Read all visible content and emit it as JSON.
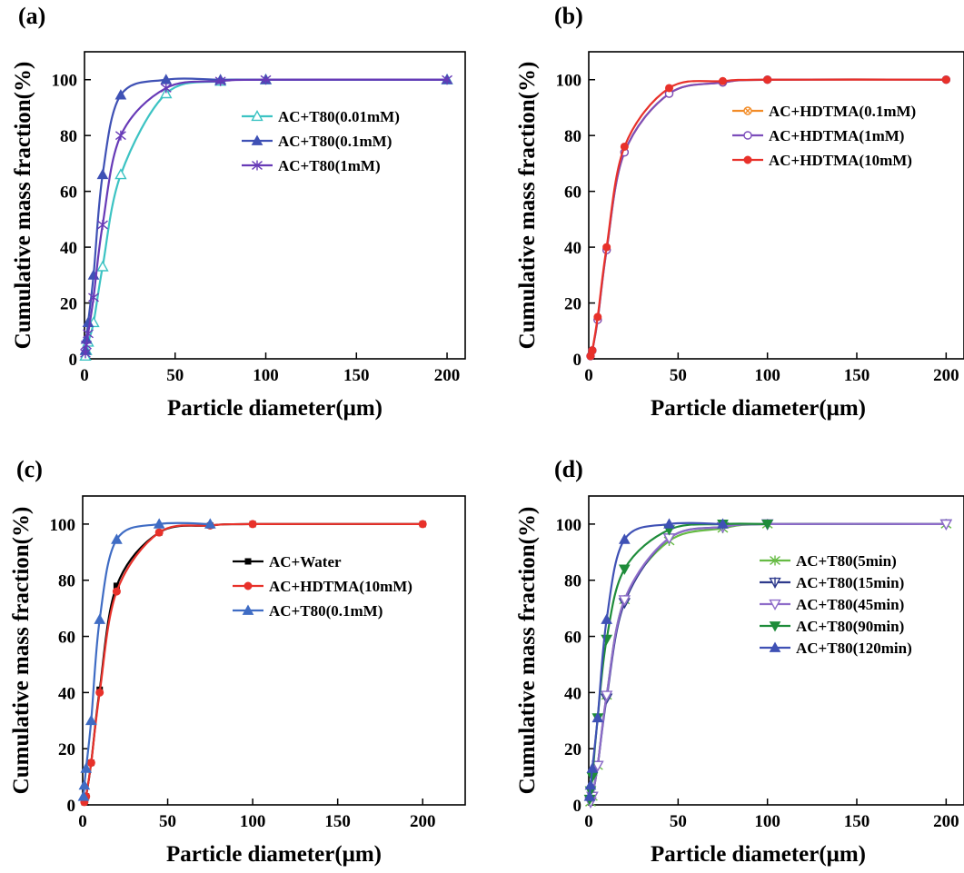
{
  "chart_data": [
    {
      "panel": "(a)",
      "type": "line",
      "xlabel": "Particle diameter(μm)",
      "ylabel": "Cumulative mass fraction(%)",
      "xlim": [
        0,
        210
      ],
      "ylim": [
        0,
        110
      ],
      "xticks": [
        0,
        50,
        100,
        150,
        200
      ],
      "yticks": [
        0,
        20,
        40,
        60,
        80,
        100
      ],
      "legend_position": "right-middle",
      "series": [
        {
          "name": "AC+T80(0.01mM)",
          "color": "#3cc3c3",
          "marker": "open-triangle",
          "x": [
            0.5,
            1,
            2,
            5,
            10,
            20,
            45,
            75,
            100,
            200
          ],
          "y": [
            1,
            3,
            6,
            13,
            33,
            66,
            95,
            99.5,
            100,
            100
          ]
        },
        {
          "name": "AC+T80(0.1mM)",
          "color": "#3f51b5",
          "marker": "filled-triangle",
          "x": [
            0.5,
            1,
            2,
            5,
            10,
            20,
            45,
            75,
            100,
            200
          ],
          "y": [
            3,
            7,
            13,
            30,
            66,
            94.5,
            100,
            100,
            100,
            100
          ]
        },
        {
          "name": "AC+T80(1mM)",
          "color": "#673ab7",
          "marker": "star",
          "x": [
            0.5,
            1,
            2,
            5,
            10,
            20,
            45,
            75,
            100,
            200
          ],
          "y": [
            2,
            5,
            9,
            22,
            48,
            80,
            97,
            99.5,
            100,
            100
          ]
        }
      ]
    },
    {
      "panel": "(b)",
      "type": "line",
      "xlabel": "Particle diameter(μm)",
      "ylabel": "Cumulative mass fraction(%)",
      "xlim": [
        0,
        210
      ],
      "ylim": [
        0,
        110
      ],
      "xticks": [
        0,
        50,
        100,
        150,
        200
      ],
      "yticks": [
        0,
        20,
        40,
        60,
        80,
        100
      ],
      "legend_position": "top-right",
      "series": [
        {
          "name": "AC+HDTMA(0.1mM)",
          "color": "#f28c28",
          "marker": "open-circle-x",
          "x": [
            1,
            2,
            5,
            10,
            20,
            45,
            75,
            100,
            200
          ],
          "y": [
            1,
            3,
            14,
            39,
            74,
            95,
            99,
            100,
            100
          ]
        },
        {
          "name": "AC+HDTMA(1mM)",
          "color": "#7c4dbb",
          "marker": "open-circle",
          "x": [
            1,
            2,
            5,
            10,
            20,
            45,
            75,
            100,
            200
          ],
          "y": [
            1,
            3,
            14,
            39,
            74,
            95,
            99,
            100,
            100
          ]
        },
        {
          "name": "AC+HDTMA(10mM)",
          "color": "#e8312a",
          "marker": "filled-circle",
          "x": [
            1,
            2,
            5,
            10,
            20,
            45,
            75,
            100,
            200
          ],
          "y": [
            1,
            3,
            15,
            40,
            76,
            97,
            99.5,
            100,
            100
          ]
        }
      ]
    },
    {
      "panel": "(c)",
      "type": "line",
      "xlabel": "Particle diameter(μm)",
      "ylabel": "Cumulative mass fraction(%)",
      "xlim": [
        0,
        225
      ],
      "ylim": [
        0,
        110
      ],
      "xticks": [
        0,
        50,
        100,
        150,
        200
      ],
      "yticks": [
        0,
        20,
        40,
        60,
        80,
        100
      ],
      "legend_position": "right-middle",
      "series": [
        {
          "name": "AC+Water",
          "color": "#000000",
          "marker": "filled-square",
          "x": [
            1,
            2,
            5,
            10,
            20,
            45,
            75,
            100,
            200
          ],
          "y": [
            1,
            3,
            15,
            41,
            78,
            97,
            99.5,
            100,
            100
          ]
        },
        {
          "name": "AC+HDTMA(10mM)",
          "color": "#e8312a",
          "marker": "filled-circle",
          "x": [
            1,
            2,
            5,
            10,
            20,
            45,
            75,
            100,
            200
          ],
          "y": [
            1,
            3,
            15,
            40,
            76,
            97,
            99.5,
            100,
            100
          ]
        },
        {
          "name": "AC+T80(0.1mM)",
          "color": "#3f6cc4",
          "marker": "filled-triangle",
          "x": [
            0.5,
            1,
            2,
            5,
            10,
            20,
            45,
            75
          ],
          "y": [
            3,
            7,
            13,
            30,
            66,
            94.5,
            100,
            100
          ]
        }
      ]
    },
    {
      "panel": "(d)",
      "type": "line",
      "xlabel": "Particle diameter(μm)",
      "ylabel": "Cumulative mass fraction(%)",
      "xlim": [
        0,
        210
      ],
      "ylim": [
        0,
        110
      ],
      "xticks": [
        0,
        50,
        100,
        150,
        200
      ],
      "yticks": [
        0,
        20,
        40,
        60,
        80,
        100
      ],
      "legend_position": "right-middle",
      "series": [
        {
          "name": "AC+T80(5min)",
          "color": "#66bb44",
          "marker": "star",
          "x": [
            1,
            2,
            5,
            10,
            20,
            45,
            75,
            100,
            200
          ],
          "y": [
            1,
            3,
            14,
            39,
            73,
            94,
            98.5,
            100,
            100
          ]
        },
        {
          "name": "AC+T80(15min)",
          "color": "#2e3a8c",
          "marker": "open-triangle-down-cross",
          "x": [
            1,
            2,
            5,
            10,
            20,
            45,
            75,
            100,
            200
          ],
          "y": [
            1,
            3,
            14,
            38,
            72,
            95,
            99,
            100,
            100
          ]
        },
        {
          "name": "AC+T80(45min)",
          "color": "#8e6cc9",
          "marker": "open-triangle-down",
          "x": [
            1,
            2,
            5,
            10,
            20,
            45,
            75,
            100,
            200
          ],
          "y": [
            1,
            3,
            14,
            39,
            73,
            95,
            99,
            100,
            100
          ]
        },
        {
          "name": "AC+T80(90min)",
          "color": "#1e8c3a",
          "marker": "filled-triangle-down",
          "x": [
            0.5,
            1,
            2,
            5,
            10,
            20,
            45,
            75,
            100
          ],
          "y": [
            2,
            5,
            10,
            31,
            59,
            84,
            98,
            100,
            100
          ]
        },
        {
          "name": "AC+T80(120min)",
          "color": "#3f51b5",
          "marker": "filled-triangle",
          "x": [
            0.5,
            1,
            2,
            5,
            10,
            20,
            45,
            75
          ],
          "y": [
            3,
            7,
            13,
            31,
            66,
            94.5,
            100,
            100
          ]
        }
      ]
    }
  ]
}
